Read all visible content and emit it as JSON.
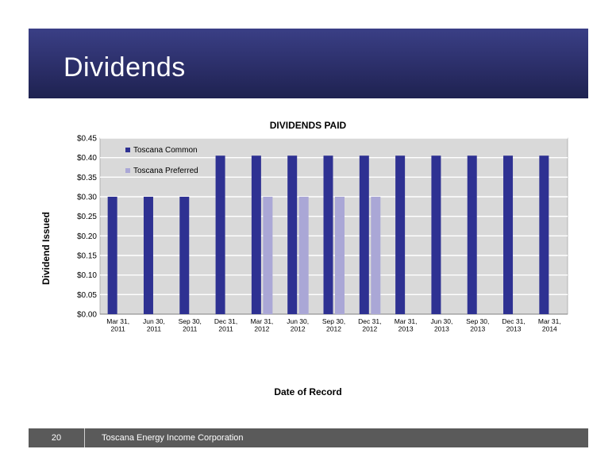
{
  "page": {
    "title": "Dividends",
    "footer": {
      "page_number": "20",
      "company": "Toscana Energy Income Corporation"
    }
  },
  "colors": {
    "header": "#2a2d66",
    "common": "#2e3192",
    "preferred": "#aaa7d6",
    "plot_bg": "#d9d9d9",
    "footer": "#5a5a5a"
  },
  "chart_data": {
    "type": "bar",
    "title": "DIVIDENDS PAID",
    "xlabel": "Date of Record",
    "ylabel": "Dividend Issued",
    "ylim": [
      0,
      0.45
    ],
    "ytick_step": 0.05,
    "ytick_labels": [
      "$0.00",
      "$0.05",
      "$0.10",
      "$0.15",
      "$0.20",
      "$0.25",
      "$0.30",
      "$0.35",
      "$0.40",
      "$0.45"
    ],
    "grid": true,
    "legend_position": "top-left",
    "categories": [
      [
        "Mar 31,",
        "2011"
      ],
      [
        "Jun 30,",
        "2011"
      ],
      [
        "Sep 30,",
        "2011"
      ],
      [
        "Dec 31,",
        "2011"
      ],
      [
        "Mar 31,",
        "2012"
      ],
      [
        "Jun 30,",
        "2012"
      ],
      [
        "Sep 30,",
        "2012"
      ],
      [
        "Dec 31,",
        "2012"
      ],
      [
        "Mar 31,",
        "2013"
      ],
      [
        "Jun 30,",
        "2013"
      ],
      [
        "Sep 30,",
        "2013"
      ],
      [
        "Dec 31,",
        "2013"
      ],
      [
        "Mar 31,",
        "2014"
      ]
    ],
    "series": [
      {
        "name": "Toscana Common",
        "color": "#2e3192",
        "values": [
          0.3,
          0.3,
          0.3,
          0.405,
          0.405,
          0.405,
          0.405,
          0.405,
          0.405,
          0.405,
          0.405,
          0.405,
          0.405
        ]
      },
      {
        "name": "Toscana Preferred",
        "color": "#aaa7d6",
        "values": [
          null,
          null,
          null,
          null,
          0.3,
          0.3,
          0.3,
          0.3,
          null,
          null,
          null,
          null,
          null
        ]
      }
    ]
  }
}
